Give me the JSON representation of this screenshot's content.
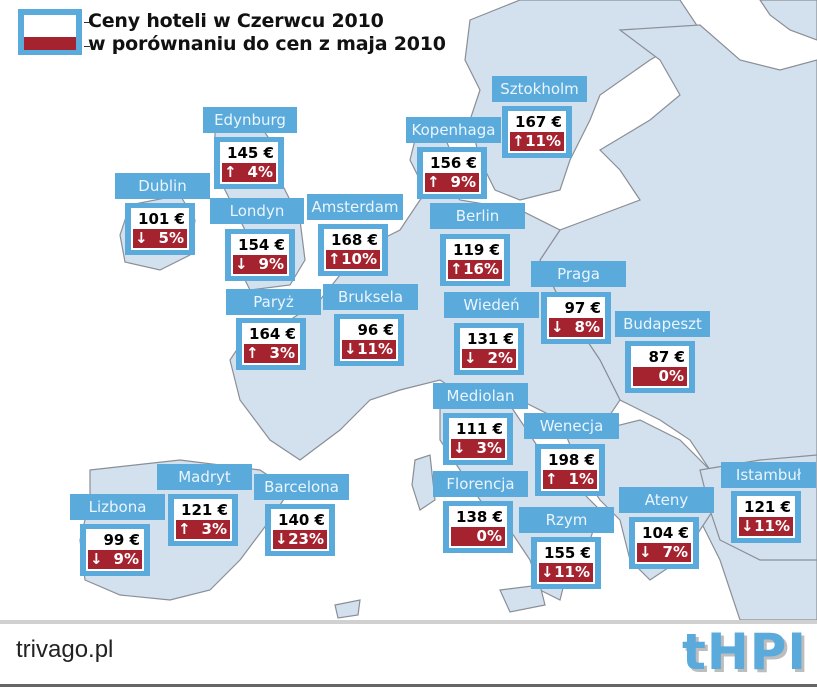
{
  "legend": {
    "title_line1": "Ceny hoteli w Czerwcu 2010",
    "title_line2": "w porównaniu do cen z maja 2010",
    "colors": {
      "frame": "#5aaadc",
      "price_bg": "#ffffff",
      "change_bg": "#a5232f"
    }
  },
  "cities": [
    {
      "name": "Edynburg",
      "price": "145 €",
      "arrow": "↑",
      "change": "4%"
    },
    {
      "name": "Dublin",
      "price": "101 €",
      "arrow": "↓",
      "change": "5%"
    },
    {
      "name": "Londyn",
      "price": "154 €",
      "arrow": "↓",
      "change": "9%"
    },
    {
      "name": "Amsterdam",
      "price": "168 €",
      "arrow": "↑",
      "change": "10%"
    },
    {
      "name": "Kopenhaga",
      "price": "156 €",
      "arrow": "↑",
      "change": "9%"
    },
    {
      "name": "Sztokholm",
      "price": "167 €",
      "arrow": "↑",
      "change": "11%"
    },
    {
      "name": "Berlin",
      "price": "119 €",
      "arrow": "↑",
      "change": "16%"
    },
    {
      "name": "Paryż",
      "price": "164 €",
      "arrow": "↑",
      "change": "3%"
    },
    {
      "name": "Bruksela",
      "price": "96 €",
      "arrow": "↓",
      "change": "11%"
    },
    {
      "name": "Praga",
      "price": "97 €",
      "arrow": "↓",
      "change": "8%"
    },
    {
      "name": "Wiedeń",
      "price": "131 €",
      "arrow": "↓",
      "change": "2%"
    },
    {
      "name": "Budapeszt",
      "price": "87 €",
      "arrow": "",
      "change": "0%"
    },
    {
      "name": "Mediolan",
      "price": "111 €",
      "arrow": "↓",
      "change": "3%"
    },
    {
      "name": "Wenecja",
      "price": "198 €",
      "arrow": "↑",
      "change": "1%"
    },
    {
      "name": "Florencja",
      "price": "138 €",
      "arrow": "",
      "change": "0%"
    },
    {
      "name": "Rzym",
      "price": "155 €",
      "arrow": "↓",
      "change": "11%"
    },
    {
      "name": "Madryt",
      "price": "121 €",
      "arrow": "↑",
      "change": "3%"
    },
    {
      "name": "Barcelona",
      "price": "140 €",
      "arrow": "↓",
      "change": "23%"
    },
    {
      "name": "Lizbona",
      "price": "99 €",
      "arrow": "↓",
      "change": "9%"
    },
    {
      "name": "Ateny",
      "price": "104 €",
      "arrow": "↓",
      "change": "7%"
    },
    {
      "name": "Istambuł",
      "price": "121 €",
      "arrow": "↓",
      "change": "11%"
    }
  ],
  "footer": {
    "brand": "trivago.pl",
    "logo": "tHPI"
  }
}
